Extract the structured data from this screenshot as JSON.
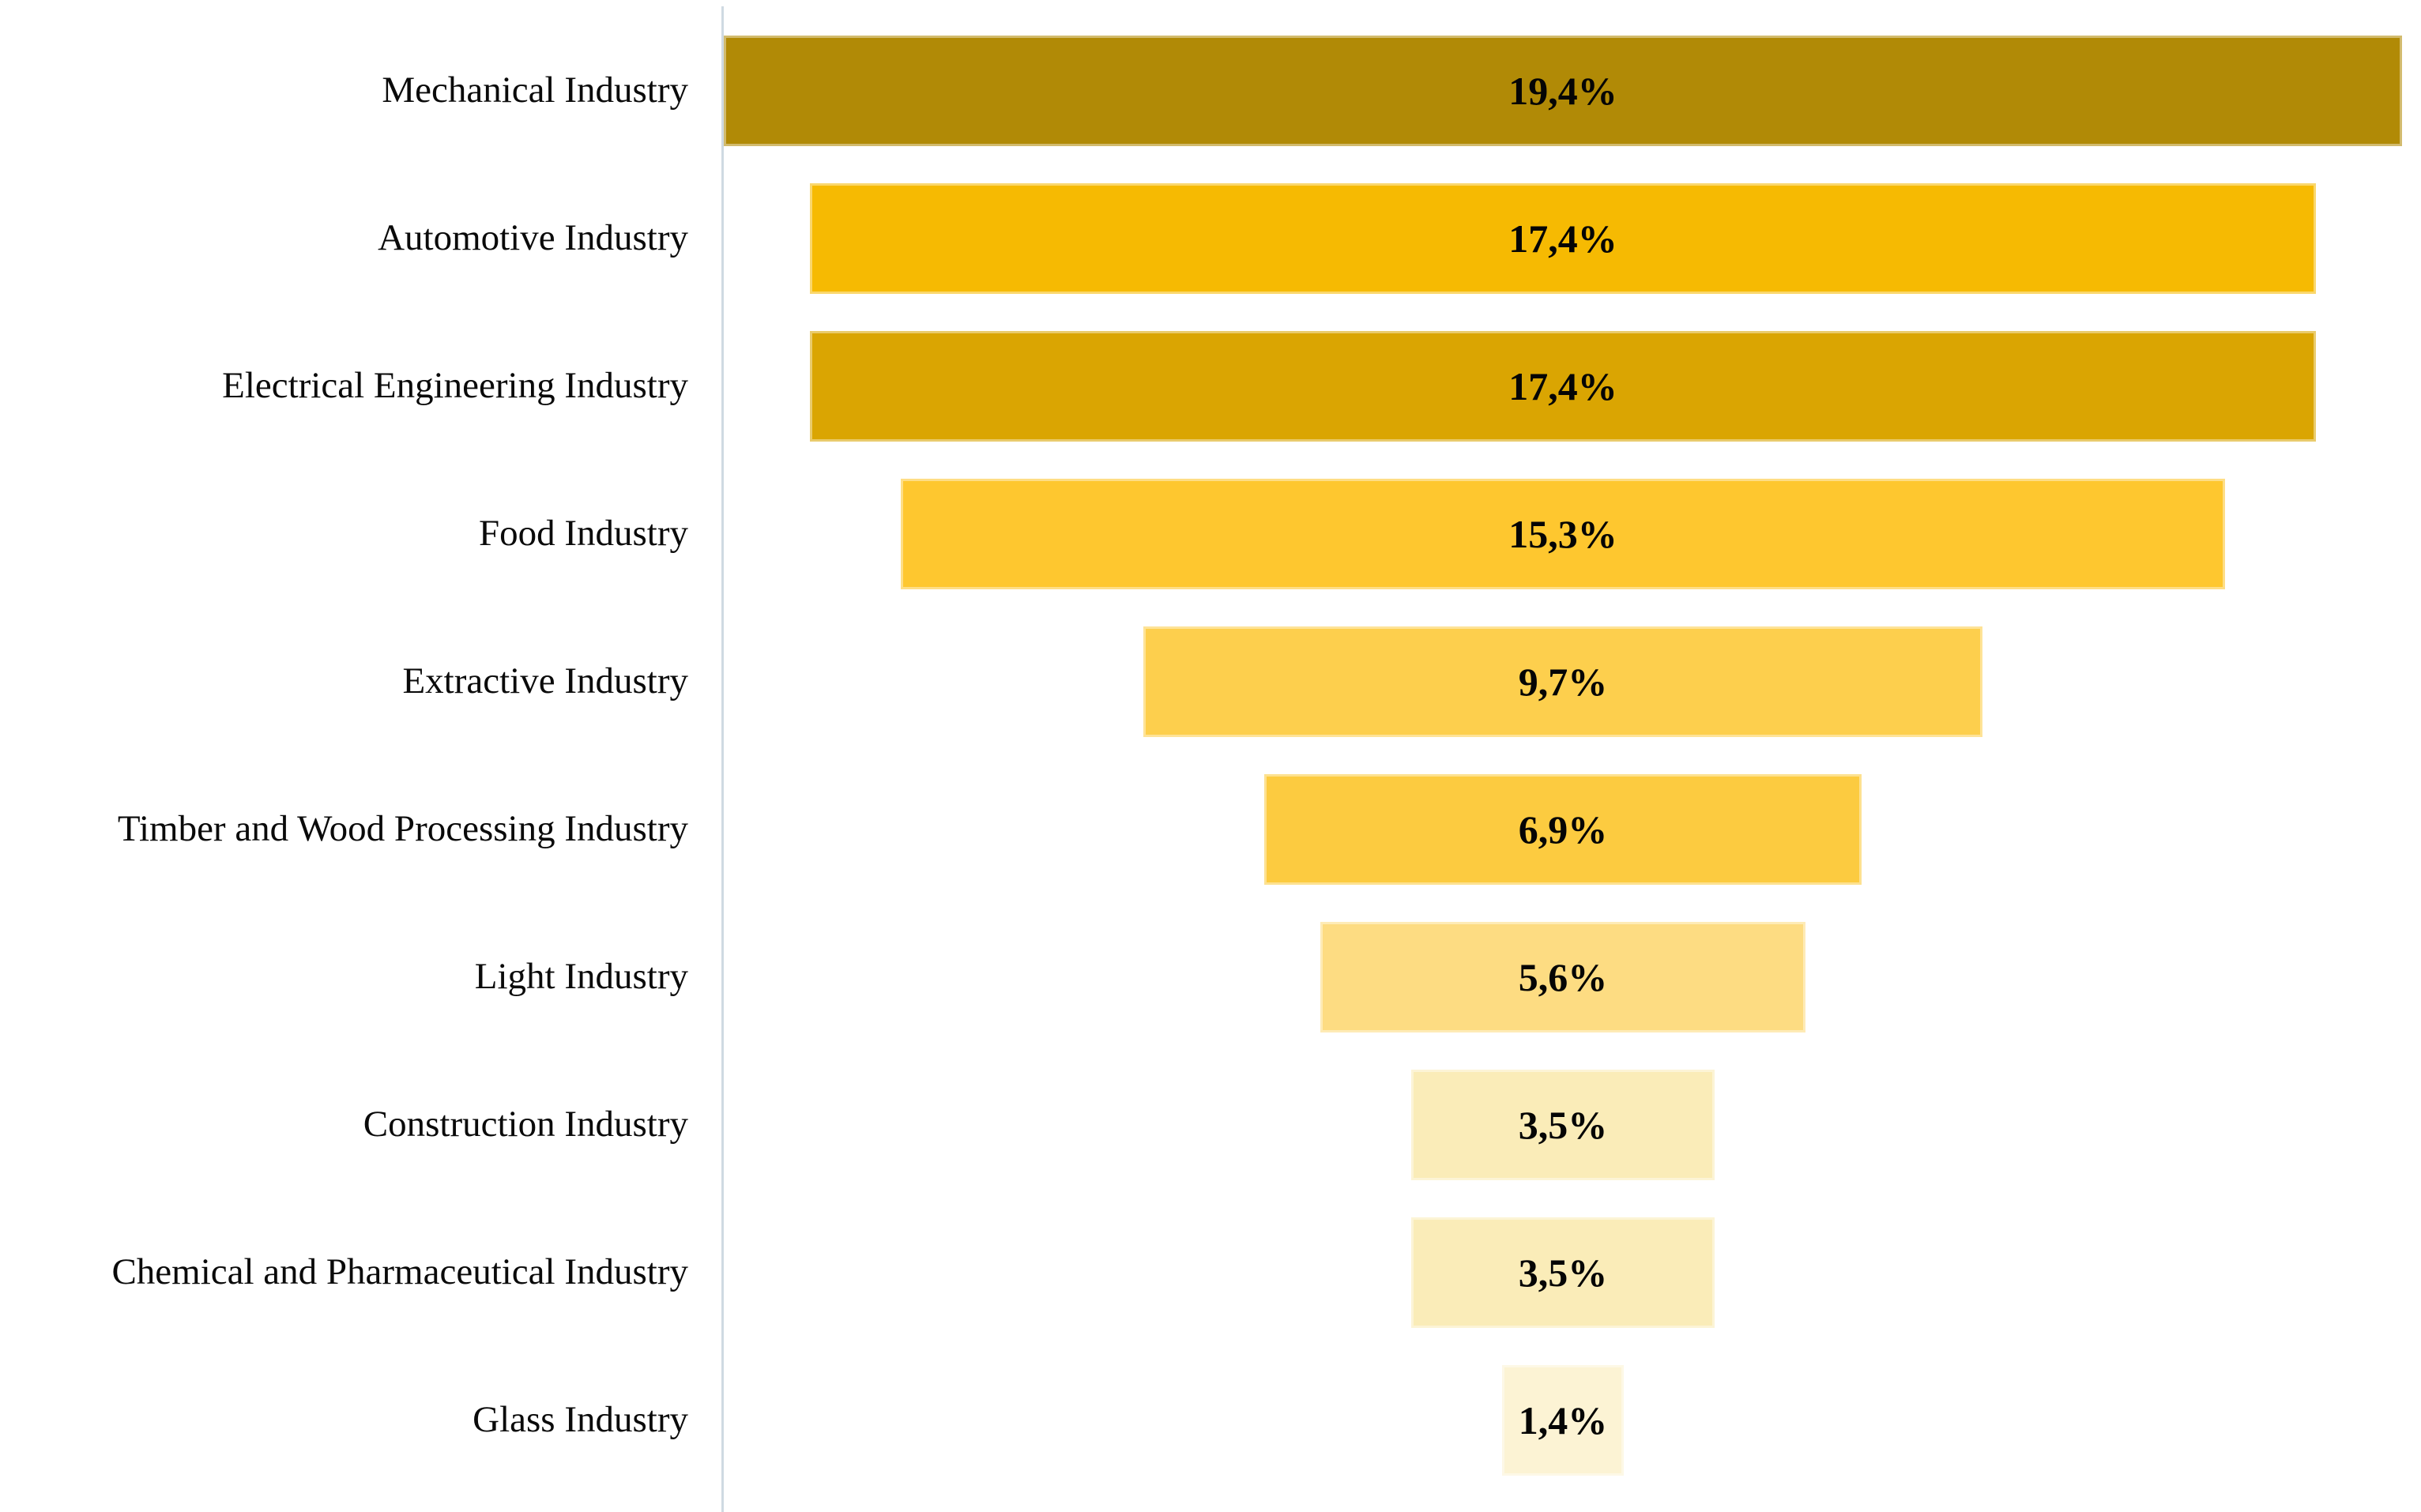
{
  "chart_data": {
    "type": "bar",
    "subtype": "funnel",
    "orientation": "horizontal-centered",
    "title": "",
    "xlabel": "",
    "ylabel": "",
    "x_max": 19.4,
    "grid": false,
    "legend": false,
    "axis_line_color": "#cfdae2",
    "value_suffix": "%",
    "categories": [
      "Mechanical Industry",
      "Automotive Industry",
      "Electrical Engineering Industry",
      "Food Industry",
      "Extractive Industry",
      "Timber and Wood Processing Industry",
      "Light Industry",
      "Construction Industry",
      "Chemical and Pharmaceutical Industry",
      "Glass Industry"
    ],
    "values": [
      19.4,
      17.4,
      17.4,
      15.3,
      9.7,
      6.9,
      5.6,
      3.5,
      3.5,
      1.4
    ],
    "items": [
      {
        "label": "Mechanical Industry",
        "value": 19.4,
        "value_label": "19,4%",
        "color": "#B18A06"
      },
      {
        "label": "Automotive Industry",
        "value": 17.4,
        "value_label": "17,4%",
        "color": "#F6BA02"
      },
      {
        "label": "Electrical Engineering Industry",
        "value": 17.4,
        "value_label": "17,4%",
        "color": "#DAA502"
      },
      {
        "label": "Food Industry",
        "value": 15.3,
        "value_label": "15,3%",
        "color": "#FEC72F"
      },
      {
        "label": "Extractive Industry",
        "value": 9.7,
        "value_label": "9,7%",
        "color": "#FDCF4D"
      },
      {
        "label": "Timber and Wood Processing Industry",
        "value": 6.9,
        "value_label": "6,9%",
        "color": "#FCCB40"
      },
      {
        "label": "Light Industry",
        "value": 5.6,
        "value_label": "5,6%",
        "color": "#FDDC82"
      },
      {
        "label": "Construction Industry",
        "value": 3.5,
        "value_label": "3,5%",
        "color": "#FAECB8"
      },
      {
        "label": "Chemical and Pharmaceutical Industry",
        "value": 3.5,
        "value_label": "3,5%",
        "color": "#FAECB8"
      },
      {
        "label": "Glass Industry",
        "value": 1.4,
        "value_label": "1,4%",
        "color": "#FCF3D4"
      }
    ]
  }
}
